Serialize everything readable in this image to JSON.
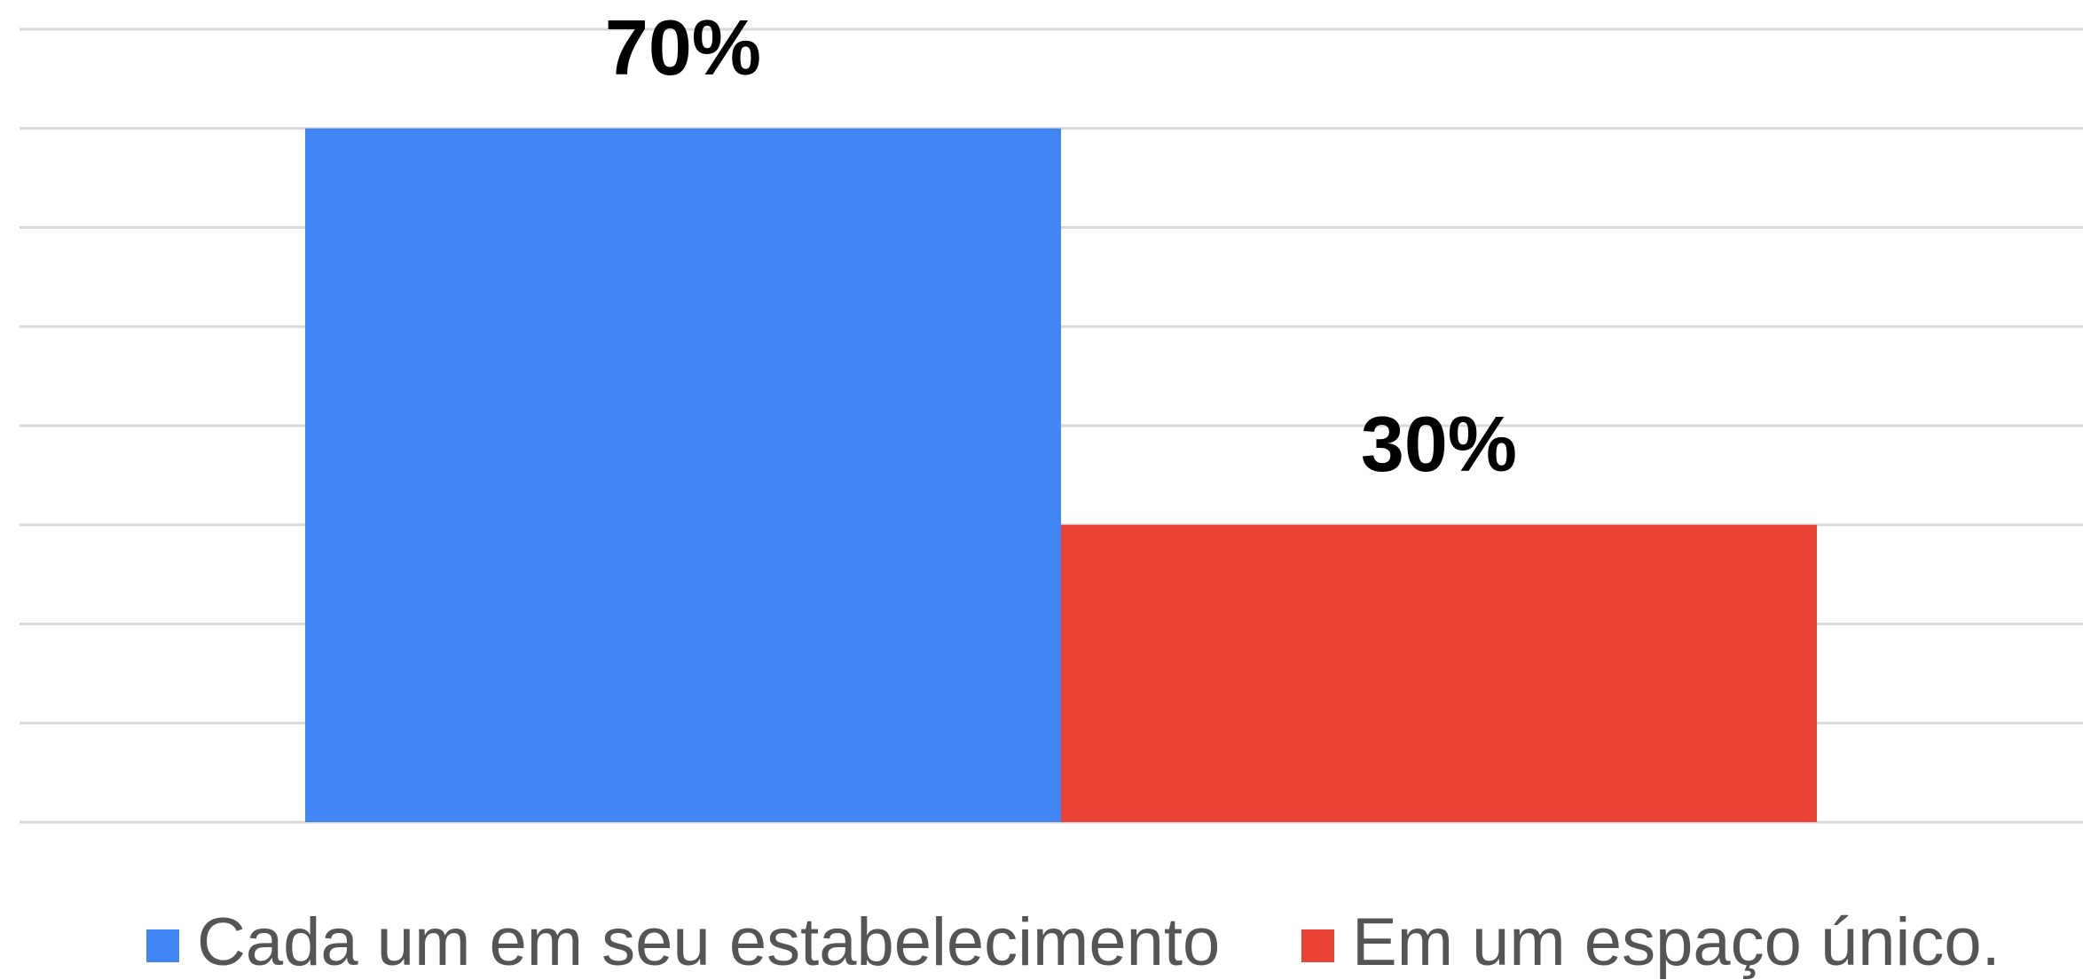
{
  "chart_data": {
    "type": "bar",
    "categories": [
      null
    ],
    "series": [
      {
        "name": "Cada um em seu estabelecimento",
        "color": "#4285f4",
        "values": [
          70
        ],
        "value_labels": [
          "70%"
        ]
      },
      {
        "name": "Em um espaço único.",
        "color": "#ea4335",
        "values": [
          30
        ],
        "value_labels": [
          "30%"
        ]
      }
    ],
    "ylim": [
      0,
      80
    ],
    "yticks": [
      0,
      10,
      20,
      30,
      40,
      50,
      60,
      70,
      80
    ],
    "grid": true,
    "legend": "bottom"
  }
}
